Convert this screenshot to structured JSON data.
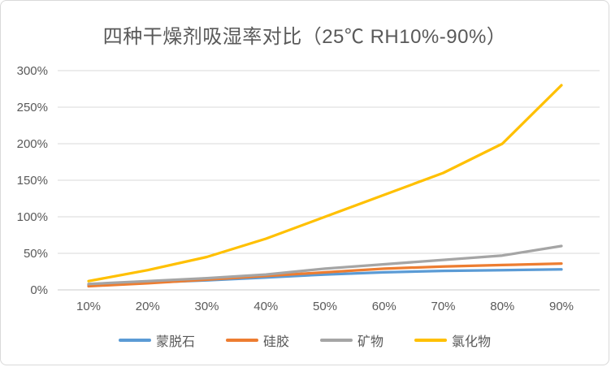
{
  "chart_data": {
    "type": "line",
    "title": "四种干燥剂吸湿率对比（25℃ RH10%-90%）",
    "xlabel": "",
    "ylabel": "",
    "categories": [
      "10%",
      "20%",
      "30%",
      "40%",
      "50%",
      "60%",
      "70%",
      "80%",
      "90%"
    ],
    "series": [
      {
        "key": "montmorillonite",
        "name": "蒙脱石",
        "color": "#5B9BD5",
        "values": [
          7,
          10,
          13,
          17,
          21,
          24,
          26,
          27,
          28
        ]
      },
      {
        "key": "silica-gel",
        "name": "硅胶",
        "color": "#ED7D31",
        "values": [
          5,
          9,
          14,
          19,
          24,
          29,
          32,
          34,
          36
        ]
      },
      {
        "key": "mineral",
        "name": "矿物",
        "color": "#A5A5A5",
        "values": [
          8,
          12,
          16,
          21,
          29,
          35,
          41,
          47,
          60
        ]
      },
      {
        "key": "chloride",
        "name": "氯化物",
        "color": "#FFC000",
        "values": [
          12,
          27,
          45,
          70,
          100,
          130,
          160,
          200,
          280
        ]
      }
    ],
    "ylim": [
      0,
      300
    ],
    "ytick_step": 50,
    "ytick_labels": [
      "0%",
      "50%",
      "100%",
      "150%",
      "200%",
      "250%",
      "300%"
    ],
    "grid": true,
    "legend_position": "bottom"
  },
  "colors": {
    "text": "#595959",
    "gridline": "#D9D9D9",
    "axis_line": "#C9C9C9",
    "background": "#FFFFFF",
    "frame_border": "#D9D9D9"
  }
}
